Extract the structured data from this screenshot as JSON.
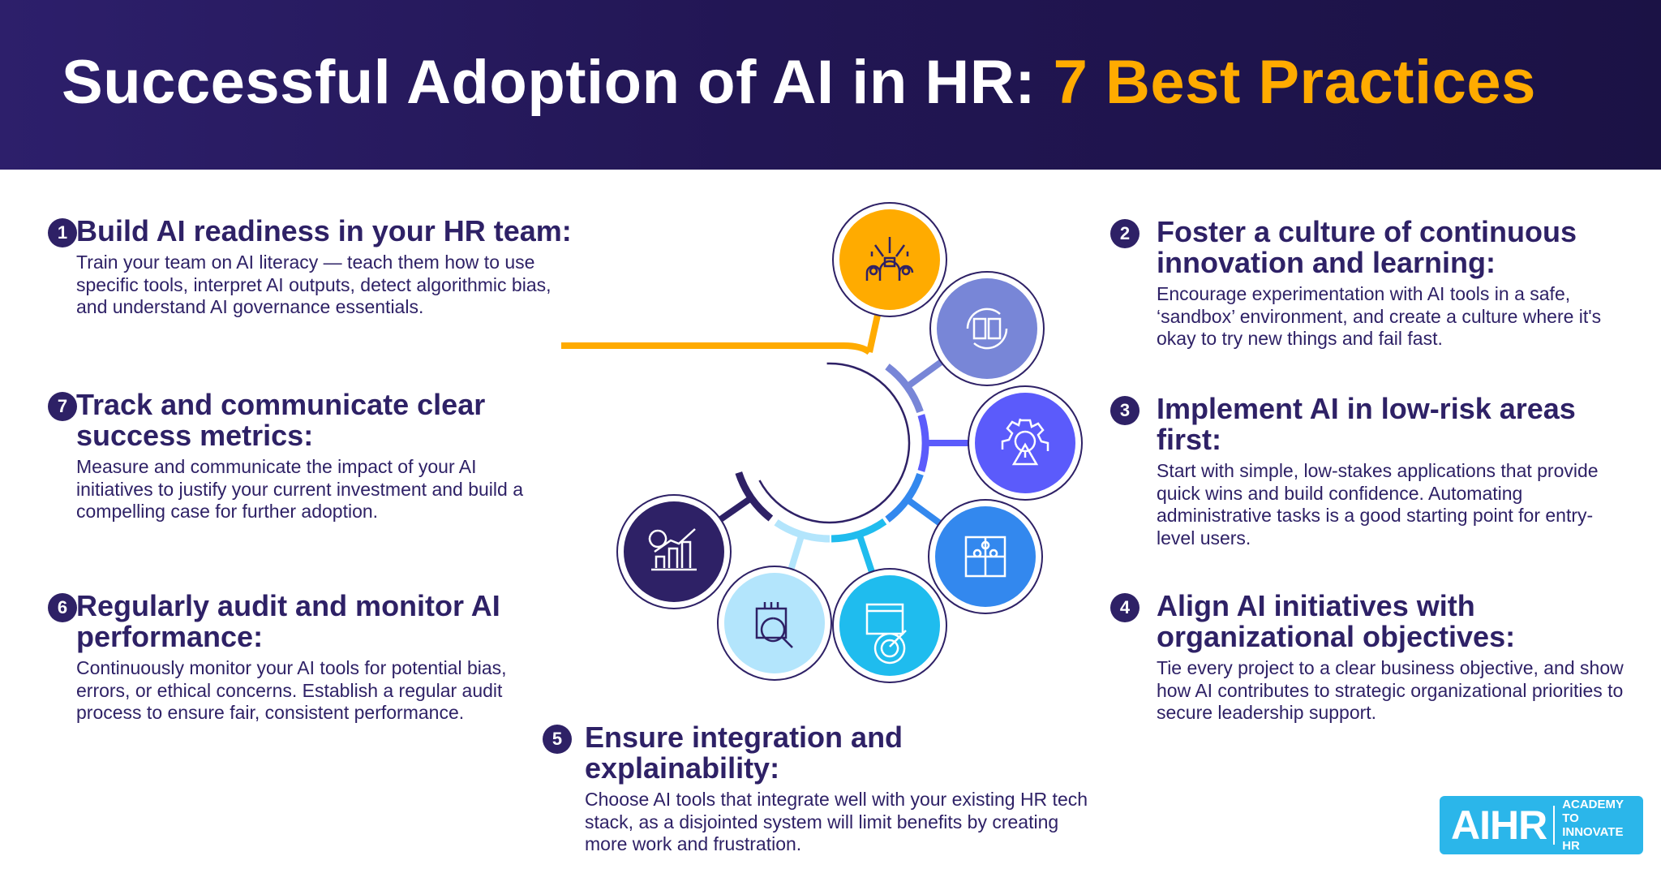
{
  "header": {
    "title_main": "Successful Adoption of AI in HR: ",
    "title_accent": "7 Best Practices"
  },
  "colors": {
    "header_bg": "#221654",
    "accent": "#ffab00",
    "text": "#2e2166",
    "logo_bg": "#2bb6ea"
  },
  "practices": [
    {
      "num": "1",
      "heading": "Build AI readiness in your HR team:",
      "body": "Train your team on AI literacy — teach them how to use specific tools, interpret AI outputs, detect algorithmic bias, and understand AI governance essentials.",
      "icon": "team-network-icon",
      "color": "#ffab00"
    },
    {
      "num": "2",
      "heading": "Foster a culture of continuous innovation and learning:",
      "body": "Encourage experimentation with AI tools in a safe, ‘sandbox’ environment, and create a culture where it's okay to try new things and fail fast.",
      "icon": "book-cycle-icon",
      "color": "#7886d7"
    },
    {
      "num": "3",
      "heading": "Implement AI in low-risk areas first:",
      "body": "Start with simple, low-stakes applications that provide quick wins and build confidence. Automating administrative tasks is a good starting point for entry-level users.",
      "icon": "gear-warning-icon",
      "color": "#5b5bfb"
    },
    {
      "num": "4",
      "heading": "Align AI initiatives with organizational objectives:",
      "body": "Tie every project to a clear business objective, and show how AI contributes to strategic organizational priorities to secure leadership support.",
      "icon": "puzzle-icon",
      "color": "#3388ee"
    },
    {
      "num": "5",
      "heading": "Ensure integration and explainability:",
      "body": "Choose AI tools that integrate well with your existing HR tech stack, as a disjointed system will limit benefits by creating more work and frustration.",
      "icon": "target-browser-icon",
      "color": "#1fbcee"
    },
    {
      "num": "6",
      "heading": "Regularly audit and monitor AI performance:",
      "body": "Continuously monitor your AI tools for potential bias, errors, or ethical concerns. Establish a regular audit process to ensure fair, consistent performance.",
      "icon": "magnifier-audit-icon",
      "color": "#b3e5fc"
    },
    {
      "num": "7",
      "heading": "Track and communicate clear success metrics:",
      "body": "Measure and communicate the impact of your AI initiatives to justify your current investment and build a compelling case for further adoption.",
      "icon": "growth-chart-icon",
      "color": "#2e2166"
    }
  ],
  "logo": {
    "brand": "AIHR",
    "tagline_line1": "ACADEMY TO",
    "tagline_line2": "INNOVATE HR"
  }
}
